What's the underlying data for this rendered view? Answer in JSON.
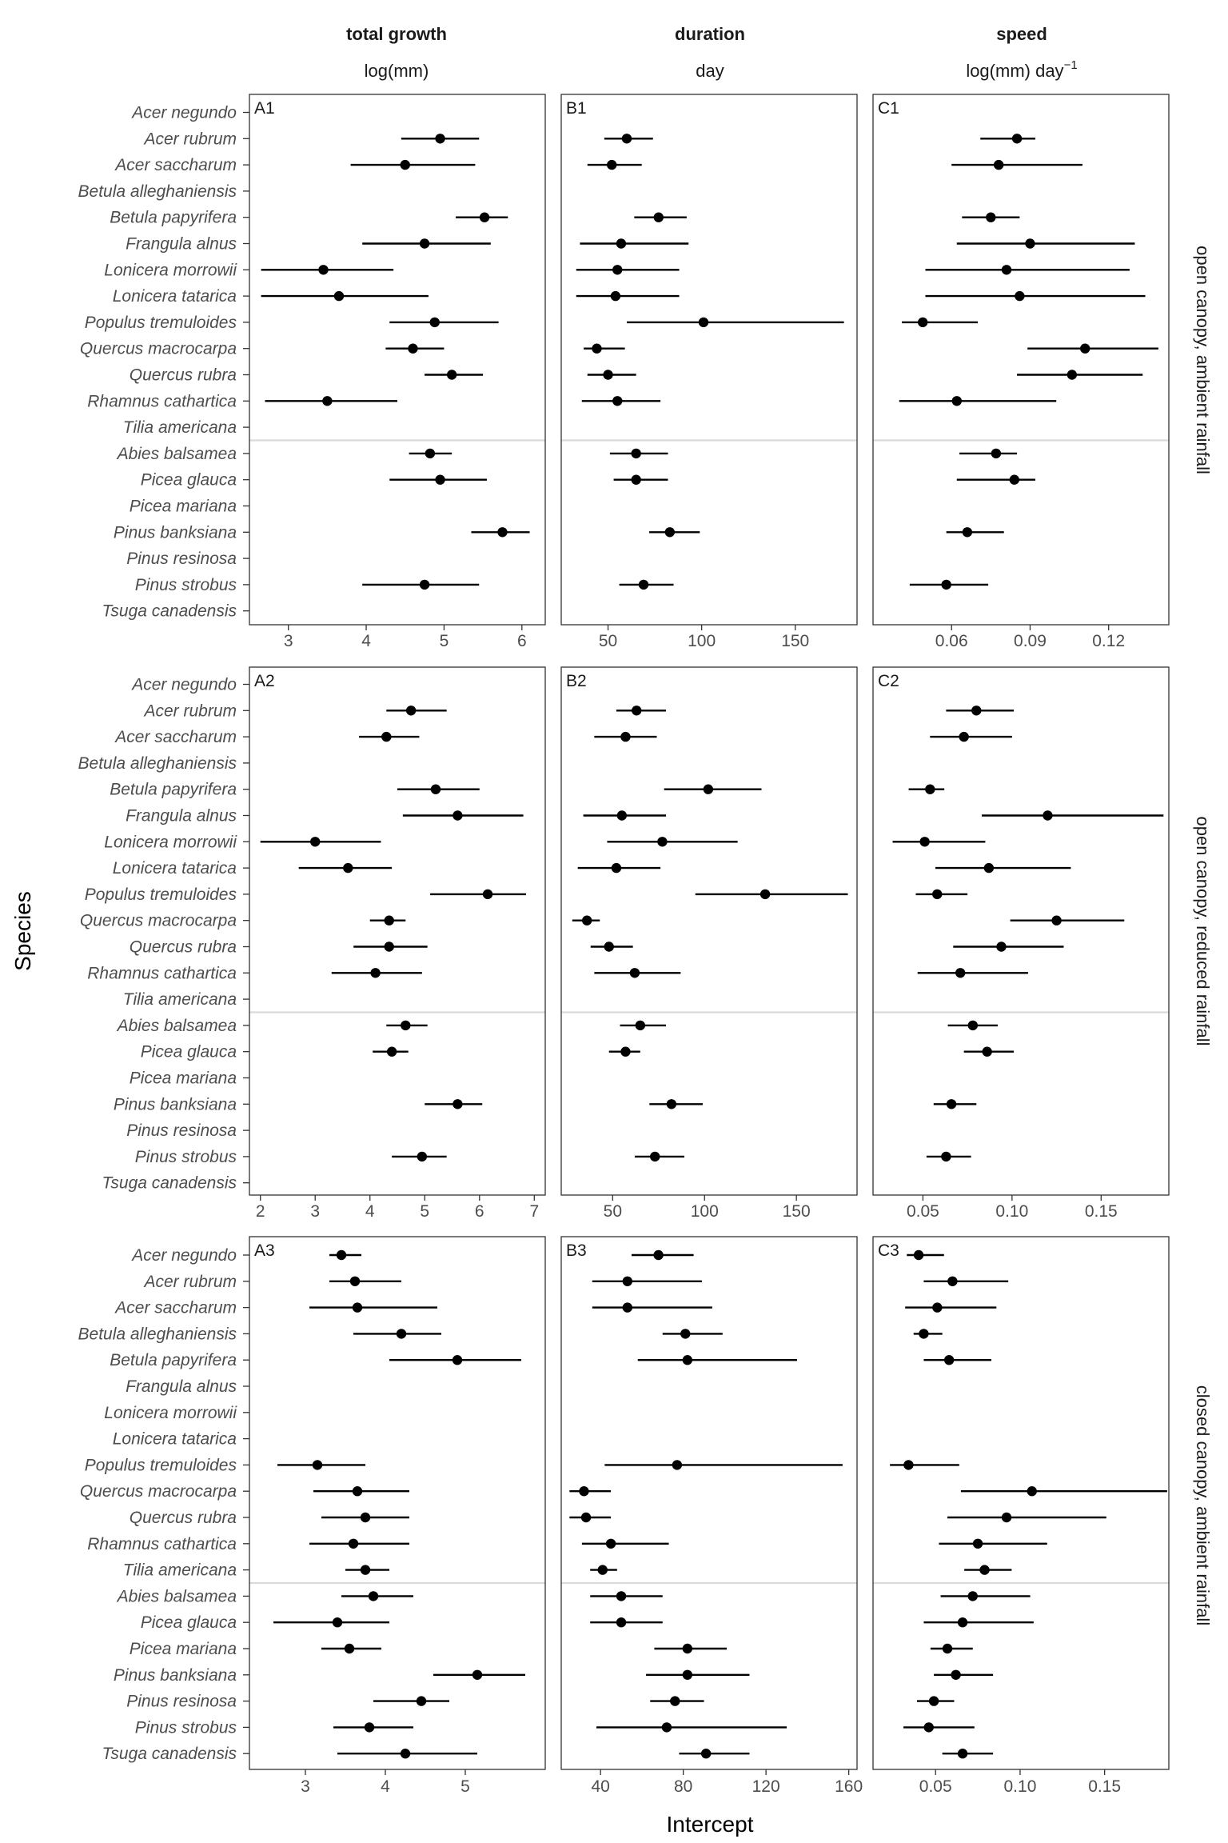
{
  "columns": [
    {
      "title": "total growth",
      "unit": "log(mm)"
    },
    {
      "title": "duration",
      "unit": "day"
    },
    {
      "title": "speed",
      "unit": "log(mm) day",
      "unit_sup": "−1"
    }
  ],
  "rows": [
    {
      "strip": "open canopy, ambient rainfall"
    },
    {
      "strip": "open canopy, reduced rainfall"
    },
    {
      "strip": "closed canopy, ambient rainfall"
    }
  ],
  "species": [
    "Acer negundo",
    "Acer rubrum",
    "Acer saccharum",
    "Betula alleghaniensis",
    "Betula papyrifera",
    "Frangula alnus",
    "Lonicera morrowii",
    "Lonicera tatarica",
    "Populus tremuloides",
    "Quercus macrocarpa",
    "Quercus rubra",
    "Rhamnus cathartica",
    "Tilia americana",
    "Abies balsamea",
    "Picea glauca",
    "Picea mariana",
    "Pinus banksiana",
    "Pinus resinosa",
    "Pinus strobus",
    "Tsuga canadensis"
  ],
  "xlabel": "Intercept",
  "ylabel": "Species",
  "chart_data": {
    "type": "scatter",
    "subtype": "dot-and-whisker faceted grid",
    "xlabel": "Intercept",
    "ylabel": "Species",
    "grid": false,
    "facets": [
      {
        "panel": "A1",
        "xlim": [
          2.5,
          6.3
        ],
        "ticks": [
          3,
          4,
          5,
          6
        ],
        "tick_labels": [
          "3",
          "4",
          "5",
          "6"
        ],
        "points": [
          null,
          [
            4.95,
            4.45,
            5.45
          ],
          [
            4.5,
            3.8,
            5.4
          ],
          null,
          [
            5.52,
            5.15,
            5.82
          ],
          [
            4.75,
            3.95,
            5.6
          ],
          [
            3.45,
            2.65,
            4.35
          ],
          [
            3.65,
            2.65,
            4.8
          ],
          [
            4.88,
            4.3,
            5.7
          ],
          [
            4.6,
            4.25,
            5.0
          ],
          [
            5.1,
            4.75,
            5.5
          ],
          [
            3.5,
            2.7,
            4.4
          ],
          null,
          [
            4.82,
            4.55,
            5.1
          ],
          [
            4.95,
            4.3,
            5.55
          ],
          null,
          [
            5.75,
            5.35,
            6.1
          ],
          null,
          [
            4.75,
            3.95,
            5.45
          ],
          null
        ]
      },
      {
        "panel": "B1",
        "xlim": [
          25,
          183
        ],
        "ticks": [
          50,
          100,
          150
        ],
        "tick_labels": [
          "50",
          "100",
          "150"
        ],
        "points": [
          null,
          [
            60,
            48,
            74
          ],
          [
            52,
            39,
            68
          ],
          null,
          [
            77,
            64,
            92
          ],
          [
            57,
            35,
            93
          ],
          [
            55,
            33,
            88
          ],
          [
            54,
            33,
            88
          ],
          [
            101,
            60,
            176
          ],
          [
            44,
            37,
            59
          ],
          [
            50,
            39,
            65
          ],
          [
            55,
            36,
            78
          ],
          null,
          [
            65,
            51,
            82
          ],
          [
            65,
            53,
            82
          ],
          null,
          [
            83,
            72,
            99
          ],
          null,
          [
            69,
            56,
            85
          ],
          null
        ]
      },
      {
        "panel": "C1",
        "xlim": [
          0.03,
          0.143
        ],
        "ticks": [
          0.06,
          0.09,
          0.12
        ],
        "tick_labels": [
          "0.06",
          "0.09",
          "0.12"
        ],
        "points": [
          null,
          [
            0.085,
            0.071,
            0.092
          ],
          [
            0.078,
            0.06,
            0.11
          ],
          null,
          [
            0.075,
            0.064,
            0.086
          ],
          [
            0.09,
            0.062,
            0.13
          ],
          [
            0.081,
            0.05,
            0.128
          ],
          [
            0.086,
            0.05,
            0.134
          ],
          [
            0.049,
            0.041,
            0.07
          ],
          [
            0.111,
            0.089,
            0.139
          ],
          [
            0.106,
            0.085,
            0.133
          ],
          [
            0.062,
            0.04,
            0.1
          ],
          null,
          [
            0.077,
            0.063,
            0.085
          ],
          [
            0.084,
            0.062,
            0.092
          ],
          null,
          [
            0.066,
            0.058,
            0.08
          ],
          null,
          [
            0.058,
            0.044,
            0.074
          ],
          null
        ]
      },
      {
        "panel": "A2",
        "xlim": [
          1.8,
          7.2
        ],
        "ticks": [
          2,
          3,
          4,
          5,
          6,
          7
        ],
        "tick_labels": [
          "2",
          "3",
          "4",
          "5",
          "6",
          "7"
        ],
        "points": [
          null,
          [
            4.75,
            4.3,
            5.4
          ],
          [
            4.3,
            3.8,
            4.9
          ],
          null,
          [
            5.2,
            4.5,
            6.0
          ],
          [
            5.6,
            4.6,
            6.8
          ],
          [
            3.0,
            2.0,
            4.2
          ],
          [
            3.6,
            2.7,
            4.4
          ],
          [
            6.15,
            5.1,
            6.85
          ],
          [
            4.35,
            4.0,
            4.65
          ],
          [
            4.35,
            3.7,
            5.05
          ],
          [
            4.1,
            3.3,
            4.95
          ],
          null,
          [
            4.65,
            4.3,
            5.05
          ],
          [
            4.4,
            4.05,
            4.7
          ],
          null,
          [
            5.6,
            5.0,
            6.05
          ],
          null,
          [
            4.95,
            4.4,
            5.4
          ],
          null
        ]
      },
      {
        "panel": "B2",
        "xlim": [
          22,
          183
        ],
        "ticks": [
          50,
          100,
          150
        ],
        "tick_labels": [
          "50",
          "100",
          "150"
        ],
        "points": [
          null,
          [
            63,
            52,
            79
          ],
          [
            57,
            40,
            74
          ],
          null,
          [
            102,
            78,
            131
          ],
          [
            55,
            34,
            79
          ],
          [
            77,
            47,
            118
          ],
          [
            52,
            31,
            76
          ],
          [
            133,
            95,
            178
          ],
          [
            36,
            28,
            43
          ],
          [
            48,
            38,
            61
          ],
          [
            62,
            40,
            87
          ],
          null,
          [
            65,
            54,
            79
          ],
          [
            57,
            48,
            65
          ],
          null,
          [
            82,
            70,
            99
          ],
          null,
          [
            73,
            62,
            89
          ],
          null
        ]
      },
      {
        "panel": "C2",
        "xlim": [
          0.022,
          0.188
        ],
        "ticks": [
          0.05,
          0.1,
          0.15
        ],
        "tick_labels": [
          "0.05",
          "0.10",
          "0.15"
        ],
        "points": [
          null,
          [
            0.08,
            0.063,
            0.101
          ],
          [
            0.073,
            0.054,
            0.1
          ],
          null,
          [
            0.054,
            0.042,
            0.062
          ],
          [
            0.12,
            0.083,
            0.185
          ],
          [
            0.051,
            0.033,
            0.085
          ],
          [
            0.087,
            0.057,
            0.133
          ],
          [
            0.058,
            0.046,
            0.075
          ],
          [
            0.125,
            0.099,
            0.163
          ],
          [
            0.094,
            0.067,
            0.129
          ],
          [
            0.071,
            0.047,
            0.109
          ],
          null,
          [
            0.078,
            0.064,
            0.092
          ],
          [
            0.086,
            0.073,
            0.101
          ],
          null,
          [
            0.066,
            0.056,
            0.08
          ],
          null,
          [
            0.063,
            0.052,
            0.077
          ],
          null
        ]
      },
      {
        "panel": "A3",
        "xlim": [
          2.3,
          6.0
        ],
        "ticks": [
          3,
          4,
          5
        ],
        "tick_labels": [
          "3",
          "4",
          "5"
        ],
        "points": [
          [
            3.45,
            3.3,
            3.7
          ],
          [
            3.62,
            3.3,
            4.2
          ],
          [
            3.65,
            3.05,
            4.65
          ],
          [
            4.2,
            3.6,
            4.7
          ],
          [
            4.9,
            4.05,
            5.7
          ],
          null,
          null,
          null,
          [
            3.15,
            2.65,
            3.75
          ],
          [
            3.65,
            3.1,
            4.3
          ],
          [
            3.75,
            3.2,
            4.3
          ],
          [
            3.6,
            3.05,
            4.3
          ],
          [
            3.75,
            3.5,
            4.05
          ],
          [
            3.85,
            3.45,
            4.35
          ],
          [
            3.4,
            2.6,
            4.05
          ],
          [
            3.55,
            3.2,
            3.95
          ],
          [
            5.15,
            4.6,
            5.75
          ],
          [
            4.45,
            3.85,
            4.8
          ],
          [
            3.8,
            3.35,
            4.35
          ],
          [
            4.25,
            3.4,
            5.15
          ]
        ]
      },
      {
        "panel": "B3",
        "xlim": [
          21,
          164
        ],
        "ticks": [
          40,
          80,
          120,
          160
        ],
        "tick_labels": [
          "40",
          "80",
          "120",
          "160"
        ],
        "points": [
          [
            68,
            55,
            85
          ],
          [
            53,
            36,
            89
          ],
          [
            53,
            36,
            94
          ],
          [
            81,
            70,
            99
          ],
          [
            82,
            58,
            135
          ],
          null,
          null,
          null,
          [
            77,
            42,
            157
          ],
          [
            32,
            25,
            45
          ],
          [
            33,
            25,
            45
          ],
          [
            45,
            31,
            73
          ],
          [
            41,
            35,
            48
          ],
          [
            50,
            35,
            70
          ],
          [
            50,
            35,
            70
          ],
          [
            82,
            66,
            101
          ],
          [
            82,
            62,
            112
          ],
          [
            76,
            64,
            90
          ],
          [
            72,
            38,
            130
          ],
          [
            91,
            78,
            112
          ]
        ]
      },
      {
        "panel": "C3",
        "xlim": [
          0.013,
          0.188
        ],
        "ticks": [
          0.05,
          0.1,
          0.15
        ],
        "tick_labels": [
          "0.05",
          "0.10",
          "0.15"
        ],
        "points": [
          [
            0.04,
            0.033,
            0.055
          ],
          [
            0.06,
            0.043,
            0.093
          ],
          [
            0.051,
            0.032,
            0.086
          ],
          [
            0.043,
            0.037,
            0.054
          ],
          [
            0.058,
            0.043,
            0.083
          ],
          null,
          null,
          null,
          [
            0.034,
            0.023,
            0.064
          ],
          [
            0.107,
            0.065,
            0.187
          ],
          [
            0.092,
            0.057,
            0.151
          ],
          [
            0.075,
            0.052,
            0.116
          ],
          [
            0.079,
            0.067,
            0.095
          ],
          [
            0.072,
            0.053,
            0.106
          ],
          [
            0.066,
            0.043,
            0.108
          ],
          [
            0.057,
            0.047,
            0.072
          ],
          [
            0.062,
            0.049,
            0.084
          ],
          [
            0.049,
            0.039,
            0.061
          ],
          [
            0.046,
            0.031,
            0.073
          ],
          [
            0.066,
            0.054,
            0.084
          ]
        ]
      }
    ]
  }
}
